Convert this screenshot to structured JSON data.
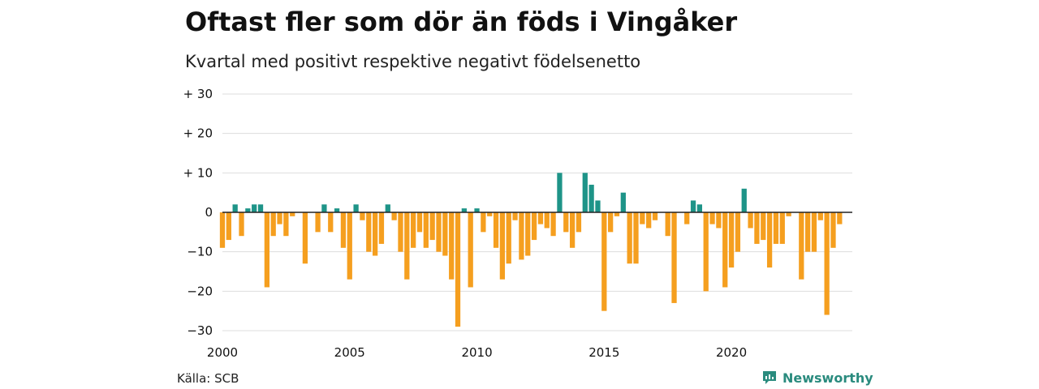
{
  "title": "Oftast fler som dör än föds i Vingåker",
  "subtitle": "Kvartal med positivt respektive negativt födelsenetto",
  "source": "Källa: SCB",
  "brand": {
    "name": "Newsworthy",
    "icon": "newsworthy-logo-icon",
    "color": "#2a8b7e"
  },
  "chart_data": {
    "type": "bar",
    "title": "Oftast fler som dör än föds i Vingåker",
    "subtitle": "Kvartal med positivt respektive negativt födelsenetto",
    "xlabel": "",
    "ylabel": "",
    "ylim": [
      -30,
      30
    ],
    "xlim": [
      2000,
      2024.75
    ],
    "grid": true,
    "legend": "none",
    "colors": {
      "positive": "#1e9488",
      "negative": "#f59f1f",
      "grid": "#dddddd",
      "zero": "#222222"
    },
    "y_ticks": [
      {
        "value": 30,
        "label": "+ 30"
      },
      {
        "value": 20,
        "label": "+ 20"
      },
      {
        "value": 10,
        "label": "+ 10"
      },
      {
        "value": 0,
        "label": "0"
      },
      {
        "value": -10,
        "label": "−10"
      },
      {
        "value": -20,
        "label": "−20"
      },
      {
        "value": -30,
        "label": "−30"
      }
    ],
    "x_ticks": [
      {
        "value": 2000,
        "label": "2000"
      },
      {
        "value": 2005,
        "label": "2005"
      },
      {
        "value": 2010,
        "label": "2010"
      },
      {
        "value": 2015,
        "label": "2015"
      },
      {
        "value": 2020,
        "label": "2020"
      }
    ],
    "start_year": 2000,
    "values": [
      -9,
      -7,
      2,
      -6,
      1,
      2,
      2,
      -19,
      -6,
      -3,
      -6,
      -1,
      0,
      -13,
      0,
      -5,
      2,
      -5,
      1,
      -9,
      -17,
      2,
      -2,
      -10,
      -11,
      -8,
      2,
      -2,
      -10,
      -17,
      -9,
      -5,
      -9,
      -7,
      -10,
      -11,
      -17,
      -29,
      1,
      -19,
      1,
      -5,
      -1,
      -9,
      -17,
      -13,
      -2,
      -12,
      -11,
      -7,
      -3,
      -4,
      -6,
      10,
      -5,
      -9,
      -5,
      10,
      7,
      3,
      -25,
      -5,
      -1,
      5,
      -13,
      -13,
      -3,
      -4,
      -2,
      0,
      -6,
      -23,
      0,
      -3,
      3,
      2,
      -20,
      -3,
      -4,
      -19,
      -14,
      -10,
      6,
      -4,
      -8,
      -7,
      -14,
      -8,
      -8,
      -1,
      0,
      -17,
      -10,
      -10,
      -2,
      -26,
      -9,
      -3
    ]
  }
}
